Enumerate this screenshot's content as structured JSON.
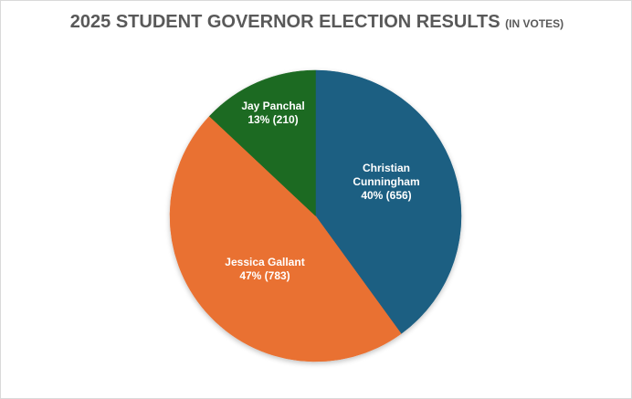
{
  "chart": {
    "title": "2025 STUDENT GOVERNOR ELECTION RESULTS",
    "subtitle": "(IN VOTES)"
  },
  "slices": [
    {
      "name_lines": [
        "Christian",
        "Cunningham"
      ],
      "pct_label": "40% (656)",
      "color": "#1a5e82"
    },
    {
      "name_lines": [
        "Jessica Gallant"
      ],
      "pct_label": "47% (783)",
      "color": "#e97132"
    },
    {
      "name_lines": [
        "Jay Panchal"
      ],
      "pct_label": "13% (210)",
      "color": "#1e6b24"
    }
  ],
  "chart_data": {
    "type": "pie",
    "title": "2025 STUDENT GOVERNOR ELECTION RESULTS (IN VOTES)",
    "categories": [
      "Christian Cunningham",
      "Jessica Gallant",
      "Jay Panchal"
    ],
    "values": [
      656,
      783,
      210
    ],
    "percentages": [
      40,
      47,
      13
    ],
    "colors": [
      "#1a5e82",
      "#e97132",
      "#1e6b24"
    ],
    "start_angle": "12 o'clock",
    "direction": "clockwise",
    "legend": "none",
    "data_labels": [
      "Christian Cunningham 40% (656)",
      "Jessica Gallant 47% (783)",
      "Jay Panchal 13% (210)"
    ]
  }
}
